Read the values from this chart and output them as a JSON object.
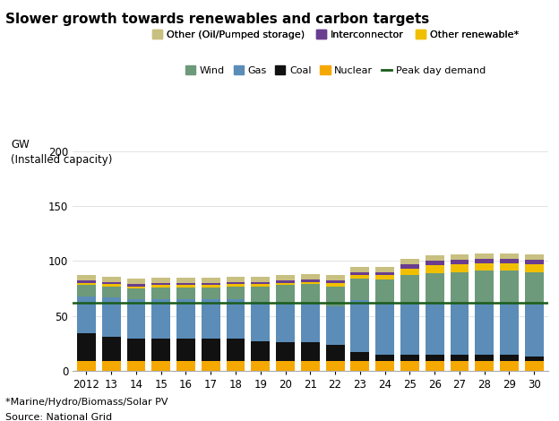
{
  "years": [
    "2012",
    "13",
    "14",
    "15",
    "16",
    "17",
    "18",
    "19",
    "20",
    "21",
    "22",
    "23",
    "24",
    "25",
    "26",
    "27",
    "28",
    "29",
    "30"
  ],
  "nuclear": [
    9,
    9,
    9,
    9,
    9,
    9,
    9,
    9,
    9,
    9,
    9,
    9,
    9,
    9,
    9,
    9,
    9,
    9,
    9
  ],
  "coal": [
    25,
    22,
    20,
    20,
    20,
    20,
    20,
    18,
    17,
    17,
    14,
    8,
    5,
    5,
    5,
    5,
    5,
    5,
    4
  ],
  "gas": [
    34,
    36,
    36,
    36,
    36,
    36,
    36,
    36,
    36,
    36,
    36,
    47,
    47,
    47,
    47,
    47,
    47,
    47,
    47
  ],
  "wind": [
    10,
    10,
    10,
    11,
    11,
    11,
    12,
    14,
    16,
    17,
    18,
    20,
    22,
    26,
    28,
    29,
    30,
    30,
    30
  ],
  "other_renewable": [
    2,
    2,
    2,
    2,
    2,
    2,
    2,
    2,
    2,
    2,
    3,
    3,
    4,
    6,
    7,
    7,
    7,
    7,
    7
  ],
  "interconnector": [
    2,
    2,
    2,
    2,
    2,
    2,
    2,
    2,
    2,
    2,
    2,
    3,
    3,
    4,
    4,
    4,
    4,
    4,
    4
  ],
  "other_oil": [
    5,
    5,
    5,
    5,
    5,
    5,
    5,
    5,
    5,
    5,
    5,
    5,
    5,
    5,
    5,
    5,
    5,
    5,
    5
  ],
  "peak_day_demand": 62,
  "bar_color_nuclear": "#f5a800",
  "bar_color_coal": "#111111",
  "bar_color_gas": "#5b8db8",
  "bar_color_wind": "#6d9a7a",
  "bar_color_other_renewable": "#f0c000",
  "bar_color_interconnector": "#6a3d8f",
  "bar_color_other_oil": "#c8c080",
  "peak_color": "#1a5c1a",
  "title": "Slower growth towards renewables and carbon targets",
  "ylabel_line1": "GW",
  "ylabel_line2": "(Installed capacity)",
  "ylim": [
    0,
    200
  ],
  "yticks": [
    0,
    50,
    100,
    150,
    200
  ],
  "footnote1": "*Marine/Hydro/Biomass/Solar PV",
  "footnote2": "Source: National Grid"
}
